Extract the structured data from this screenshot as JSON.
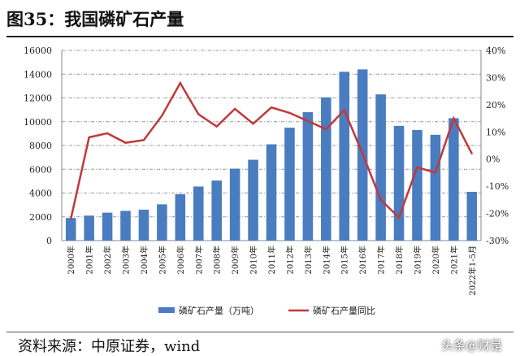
{
  "header": {
    "title": "图35：我国磷矿石产量"
  },
  "footer": {
    "source": "资料来源：中原证券，wind",
    "watermark": "头条@财是"
  },
  "chart_data": {
    "type": "bar+line",
    "title": "我国磷矿石产量",
    "categories": [
      "2000年",
      "2001年",
      "2002年",
      "2003年",
      "2004年",
      "2005年",
      "2006年",
      "2007年",
      "2008年",
      "2009年",
      "2010年",
      "2011年",
      "2012年",
      "2013年",
      "2014年",
      "2015年",
      "2016年",
      "2017年",
      "2018年",
      "2019年",
      "2020年",
      "2021年",
      "2022年1-5月"
    ],
    "series": [
      {
        "name": "磷矿石产量（万吨）",
        "type": "bar",
        "axis": "left",
        "color": "#4a7cc0",
        "values": [
          1900,
          2100,
          2350,
          2500,
          2600,
          3050,
          3900,
          4550,
          5050,
          6050,
          6800,
          8100,
          9500,
          10800,
          12050,
          14200,
          14400,
          12300,
          9650,
          9300,
          8900,
          10300,
          4100
        ]
      },
      {
        "name": "磷矿石产量同比",
        "type": "line",
        "axis": "right",
        "color": "#c0393b",
        "values": [
          -22,
          8,
          9.5,
          6,
          7,
          16,
          28,
          16.5,
          12,
          18.5,
          13,
          19,
          17,
          14,
          11,
          18,
          2,
          -15,
          -21.5,
          -3,
          -5,
          15,
          2
        ]
      }
    ],
    "left_axis": {
      "ylim": [
        0,
        16000
      ],
      "ticks": [
        "0",
        "2000",
        "4000",
        "6000",
        "8000",
        "10000",
        "12000",
        "14000",
        "16000"
      ]
    },
    "right_axis": {
      "ylim": [
        -30,
        40
      ],
      "ticks": [
        "-30%",
        "-20%",
        "-10%",
        "0%",
        "10%",
        "20%",
        "30%",
        "40%"
      ]
    },
    "grid": true,
    "legend": "bottom"
  }
}
